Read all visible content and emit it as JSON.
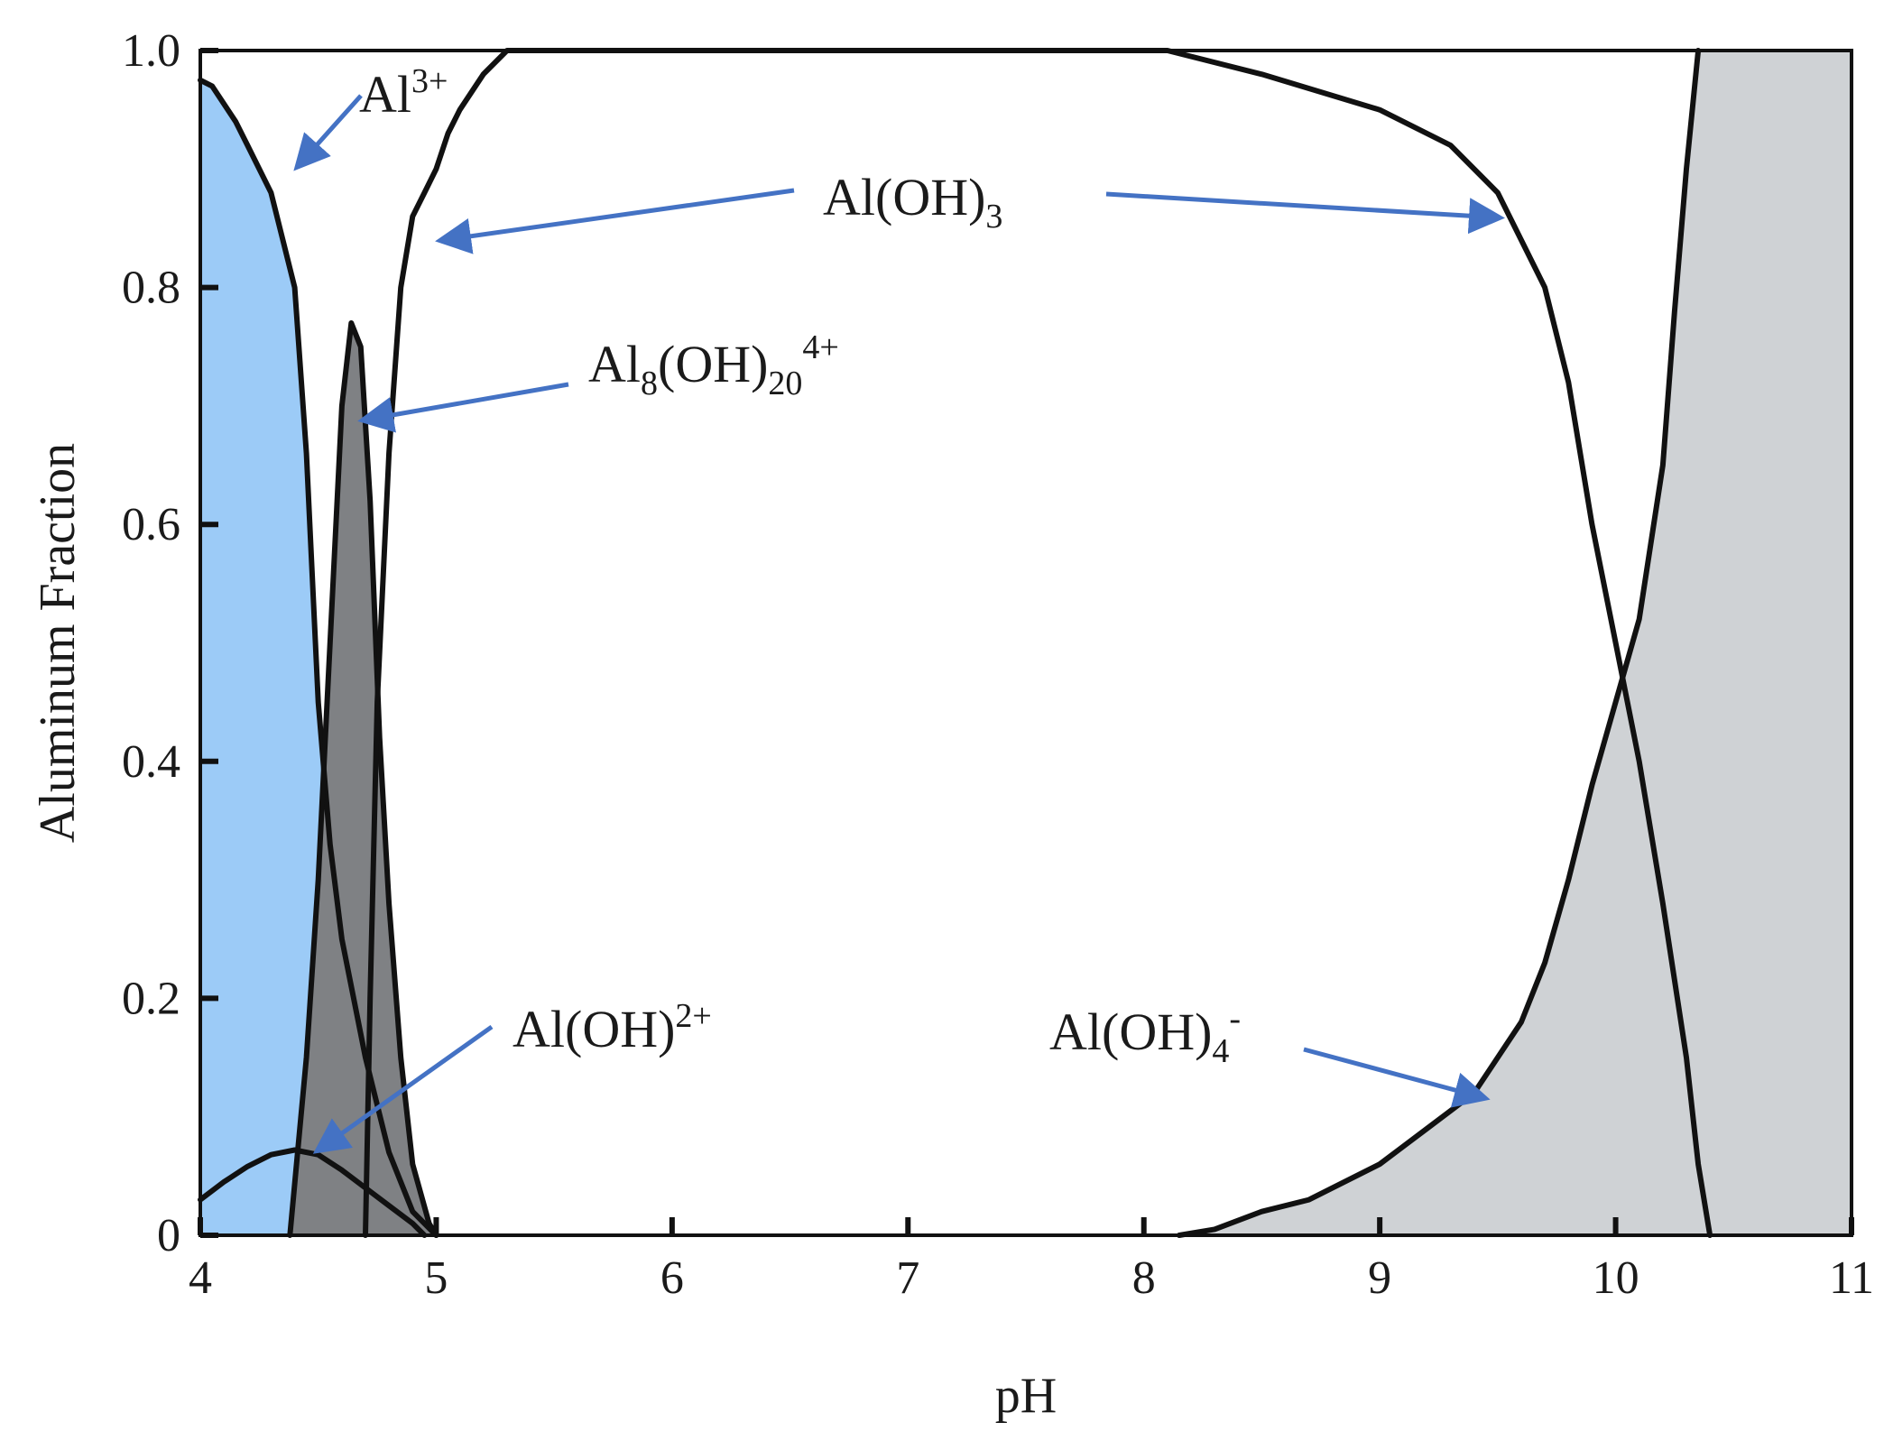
{
  "chart_data": {
    "type": "area",
    "title": "",
    "xlabel": "pH",
    "ylabel": "Aluminum Fraction",
    "xlim": [
      4,
      11
    ],
    "ylim": [
      0,
      1
    ],
    "x_ticks": [
      "4",
      "5",
      "6",
      "7",
      "8",
      "9",
      "10",
      "11"
    ],
    "y_ticks": [
      "0",
      "0.2",
      "0.4",
      "0.6",
      "0.8",
      "1.0"
    ],
    "grid": false,
    "legend": "none",
    "colors": {
      "al3": "#9ccbf7",
      "al8": "#7f8184",
      "aloh4": "#cfd2d5",
      "arrow": "#4472c4",
      "line": "#111111"
    },
    "series": [
      {
        "name": "Al3+",
        "fill": true,
        "color": "#9ccbf7",
        "x": [
          4.0,
          4.05,
          4.15,
          4.2,
          4.3,
          4.4,
          4.45,
          4.5,
          4.55,
          4.6,
          4.7,
          4.8,
          4.9,
          5.0
        ],
        "y": [
          0.975,
          0.97,
          0.94,
          0.92,
          0.88,
          0.8,
          0.66,
          0.45,
          0.33,
          0.25,
          0.15,
          0.07,
          0.02,
          0.0
        ]
      },
      {
        "name": "Al8(OH)20 4+",
        "fill": true,
        "color": "#7f8184",
        "x": [
          4.38,
          4.45,
          4.5,
          4.55,
          4.6,
          4.64,
          4.68,
          4.72,
          4.76,
          4.8,
          4.85,
          4.9,
          4.97,
          5.0
        ],
        "y": [
          0.0,
          0.15,
          0.3,
          0.5,
          0.7,
          0.77,
          0.75,
          0.62,
          0.42,
          0.28,
          0.15,
          0.06,
          0.01,
          0.0
        ]
      },
      {
        "name": "Al(OH)2+",
        "fill": false,
        "color": "#111111",
        "x": [
          4.0,
          4.1,
          4.2,
          4.3,
          4.4,
          4.5,
          4.6,
          4.7,
          4.8,
          4.9,
          4.95
        ],
        "y": [
          0.03,
          0.045,
          0.058,
          0.068,
          0.072,
          0.068,
          0.055,
          0.04,
          0.025,
          0.01,
          0.0
        ]
      },
      {
        "name": "Al(OH)3",
        "fill": false,
        "color": "#111111",
        "x": [
          4.7,
          4.72,
          4.75,
          4.8,
          4.85,
          4.9,
          4.95,
          5.0,
          5.05,
          5.1,
          5.2,
          5.3,
          8.1,
          8.5,
          9.0,
          9.3,
          9.5,
          9.7,
          9.8,
          9.9,
          10.0,
          10.1,
          10.2,
          10.3,
          10.35,
          10.4
        ],
        "y": [
          0.0,
          0.2,
          0.45,
          0.66,
          0.8,
          0.86,
          0.88,
          0.9,
          0.93,
          0.95,
          0.98,
          1.0,
          1.0,
          0.98,
          0.95,
          0.92,
          0.88,
          0.8,
          0.72,
          0.6,
          0.5,
          0.4,
          0.28,
          0.15,
          0.06,
          0.0
        ]
      },
      {
        "name": "Al(OH)4-",
        "fill": true,
        "color": "#cfd2d5",
        "x": [
          8.15,
          8.3,
          8.5,
          8.7,
          9.0,
          9.2,
          9.4,
          9.6,
          9.7,
          9.8,
          9.9,
          10.0,
          10.1,
          10.2,
          10.25,
          10.3,
          10.35
        ],
        "y": [
          0.0,
          0.005,
          0.02,
          0.03,
          0.06,
          0.09,
          0.12,
          0.18,
          0.23,
          0.3,
          0.38,
          0.45,
          0.52,
          0.65,
          0.78,
          0.9,
          1.0
        ]
      }
    ],
    "annotations": [
      {
        "base": "Al",
        "sub": "",
        "sup": "3+",
        "target": [
          4.4,
          0.9
        ]
      },
      {
        "base": "Al(OH)",
        "sub": "3",
        "sup": "",
        "target": [
          4.97,
          0.84
        ]
      },
      {
        "base": "",
        "sub": "",
        "sup": "",
        "target": [
          9.45,
          0.86
        ]
      },
      {
        "base": "Al",
        "sub": "8",
        "sup": "",
        "mid": "(OH)",
        "sub2": "20",
        "sup2": "4+",
        "target": [
          4.68,
          0.69
        ]
      },
      {
        "base": "Al(OH)",
        "sub": "",
        "sup": "2+",
        "target": [
          4.45,
          0.07
        ]
      },
      {
        "base": "Al(OH)",
        "sub": "4",
        "sup": "-",
        "target": [
          9.4,
          0.11
        ]
      }
    ]
  }
}
